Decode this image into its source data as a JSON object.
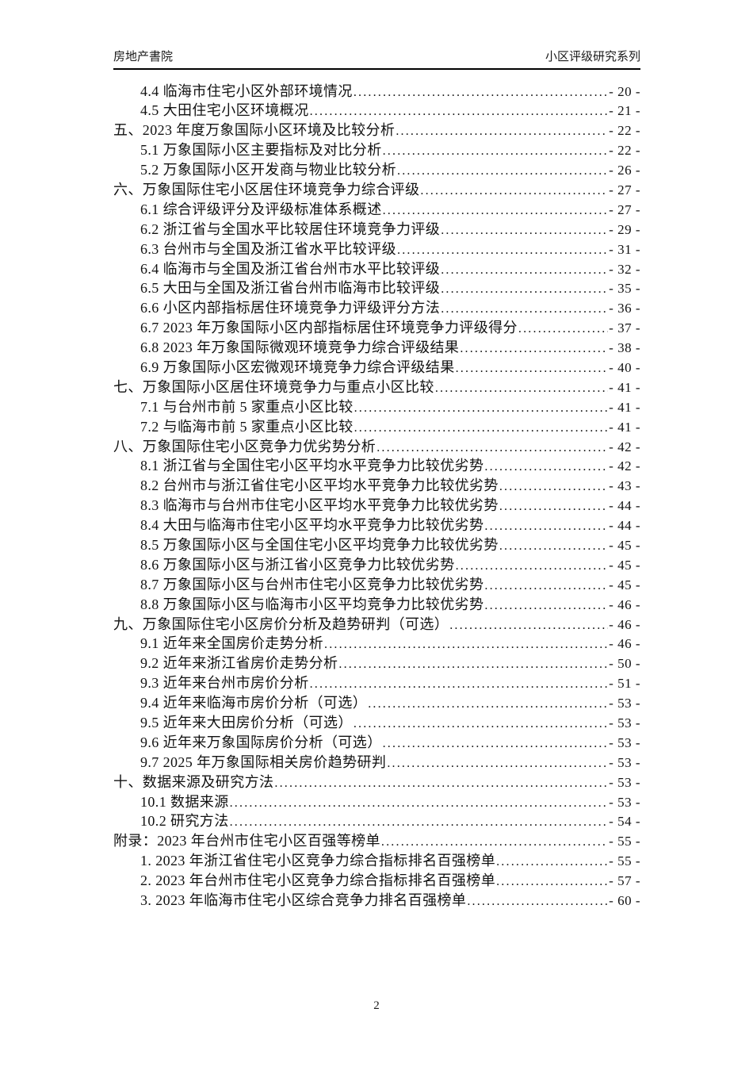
{
  "header": {
    "left": "房地产書院",
    "right": "小区评级研究系列"
  },
  "toc": {
    "leader_char": ".",
    "entries": [
      {
        "level": "sub",
        "title": "4.4 临海市住宅小区外部环境情况",
        "page": "- 20 -"
      },
      {
        "level": "sub",
        "title": "4.5 大田住宅小区环境概况",
        "page": "- 21 -"
      },
      {
        "level": "top",
        "title": "五、2023 年度万象国际小区环境及比较分析",
        "page": "- 22 -"
      },
      {
        "level": "sub",
        "title": "5.1 万象国际小区主要指标及对比分析",
        "page": "- 22 -"
      },
      {
        "level": "sub",
        "title": "5.2 万象国际小区开发商与物业比较分析",
        "page": "- 26 -"
      },
      {
        "level": "top",
        "title": "六、万象国际住宅小区居住环境竞争力综合评级",
        "page": "- 27 -"
      },
      {
        "level": "sub",
        "title": "6.1 综合评级评分及评级标准体系概述",
        "page": "- 27 -"
      },
      {
        "level": "sub",
        "title": "6.2 浙江省与全国水平比较居住环境竞争力评级",
        "page": "- 29 -"
      },
      {
        "level": "sub",
        "title": "6.3 台州市与全国及浙江省水平比较评级",
        "page": "- 31 -"
      },
      {
        "level": "sub",
        "title": "6.4 临海市与全国及浙江省台州市水平比较评级",
        "page": "- 32 -"
      },
      {
        "level": "sub",
        "title": "6.5 大田与全国及浙江省台州市临海市比较评级",
        "page": "- 35 -"
      },
      {
        "level": "sub",
        "title": "6.6 小区内部指标居住环境竞争力评级评分方法",
        "page": "- 36 -"
      },
      {
        "level": "sub",
        "title": "6.7 2023 年万象国际小区内部指标居住环境竞争力评级得分",
        "page": "- 37 -"
      },
      {
        "level": "sub",
        "title": "6.8 2023 年万象国际微观环境竞争力综合评级结果",
        "page": "- 38 -"
      },
      {
        "level": "sub",
        "title": "6.9 万象国际小区宏微观环境竞争力综合评级结果",
        "page": "- 40 -"
      },
      {
        "level": "top",
        "title": "七、万象国际小区居住环境竞争力与重点小区比较",
        "page": "- 41 -"
      },
      {
        "level": "sub",
        "title": "7.1 与台州市前 5 家重点小区比较",
        "page": "- 41 -"
      },
      {
        "level": "sub",
        "title": "7.2 与临海市前 5 家重点小区比较",
        "page": "- 41 -"
      },
      {
        "level": "top",
        "title": "八、万象国际住宅小区竞争力优劣势分析",
        "page": "- 42 -"
      },
      {
        "level": "sub",
        "title": "8.1 浙江省与全国住宅小区平均水平竞争力比较优劣势",
        "page": "- 42 -"
      },
      {
        "level": "sub",
        "title": "8.2 台州市与浙江省住宅小区平均水平竞争力比较优劣势",
        "page": "- 43 -"
      },
      {
        "level": "sub",
        "title": "8.3 临海市与台州市住宅小区平均水平竞争力比较优劣势",
        "page": "- 44 -"
      },
      {
        "level": "sub",
        "title": "8.4 大田与临海市住宅小区平均水平竞争力比较优劣势",
        "page": "- 44 -"
      },
      {
        "level": "sub",
        "title": "8.5 万象国际小区与全国住宅小区平均竞争力比较优劣势",
        "page": "- 45 -"
      },
      {
        "level": "sub",
        "title": "8.6 万象国际小区与浙江省小区竞争力比较优劣势",
        "page": "- 45 -"
      },
      {
        "level": "sub",
        "title": "8.7 万象国际小区与台州市住宅小区竞争力比较优劣势",
        "page": "- 45 -"
      },
      {
        "level": "sub",
        "title": "8.8 万象国际小区与临海市小区平均竞争力比较优劣势",
        "page": "- 46 -"
      },
      {
        "level": "top",
        "title": "九、万象国际住宅小区房价分析及趋势研判（可选）",
        "page": "- 46 -"
      },
      {
        "level": "sub",
        "title": "9.1 近年来全国房价走势分析",
        "page": "- 46 -"
      },
      {
        "level": "sub",
        "title": "9.2 近年来浙江省房价走势分析",
        "page": "- 50 -"
      },
      {
        "level": "sub",
        "title": "9.3 近年来台州市房价分析",
        "page": "- 51 -"
      },
      {
        "level": "sub",
        "title": "9.4 近年来临海市房价分析（可选）",
        "page": "- 53 -"
      },
      {
        "level": "sub",
        "title": "9.5 近年来大田房价分析（可选）",
        "page": "- 53 -"
      },
      {
        "level": "sub",
        "title": "9.6 近年来万象国际房价分析（可选）",
        "page": "- 53 -"
      },
      {
        "level": "sub",
        "title": "9.7 2025 年万象国际相关房价趋势研判",
        "page": "- 53 -"
      },
      {
        "level": "top",
        "title": "十、数据来源及研究方法",
        "page": "- 53 -"
      },
      {
        "level": "sub",
        "title": "10.1 数据来源",
        "page": "- 53 -"
      },
      {
        "level": "sub",
        "title": "10.2 研究方法",
        "page": "- 54 -"
      },
      {
        "level": "top",
        "title": "附录：2023 年台州市住宅小区百强等榜单",
        "page": "- 55 -"
      },
      {
        "level": "sub",
        "title": "1. 2023 年浙江省住宅小区竞争力综合指标排名百强榜单",
        "page": "- 55 -"
      },
      {
        "level": "sub",
        "title": "2. 2023 年台州市住宅小区竞争力综合指标排名百强榜单",
        "page": "- 57 -"
      },
      {
        "level": "sub",
        "title": "3. 2023 年临海市住宅小区综合竞争力排名百强榜单",
        "page": "- 60 -"
      }
    ]
  },
  "footer": {
    "page_number": "2"
  }
}
